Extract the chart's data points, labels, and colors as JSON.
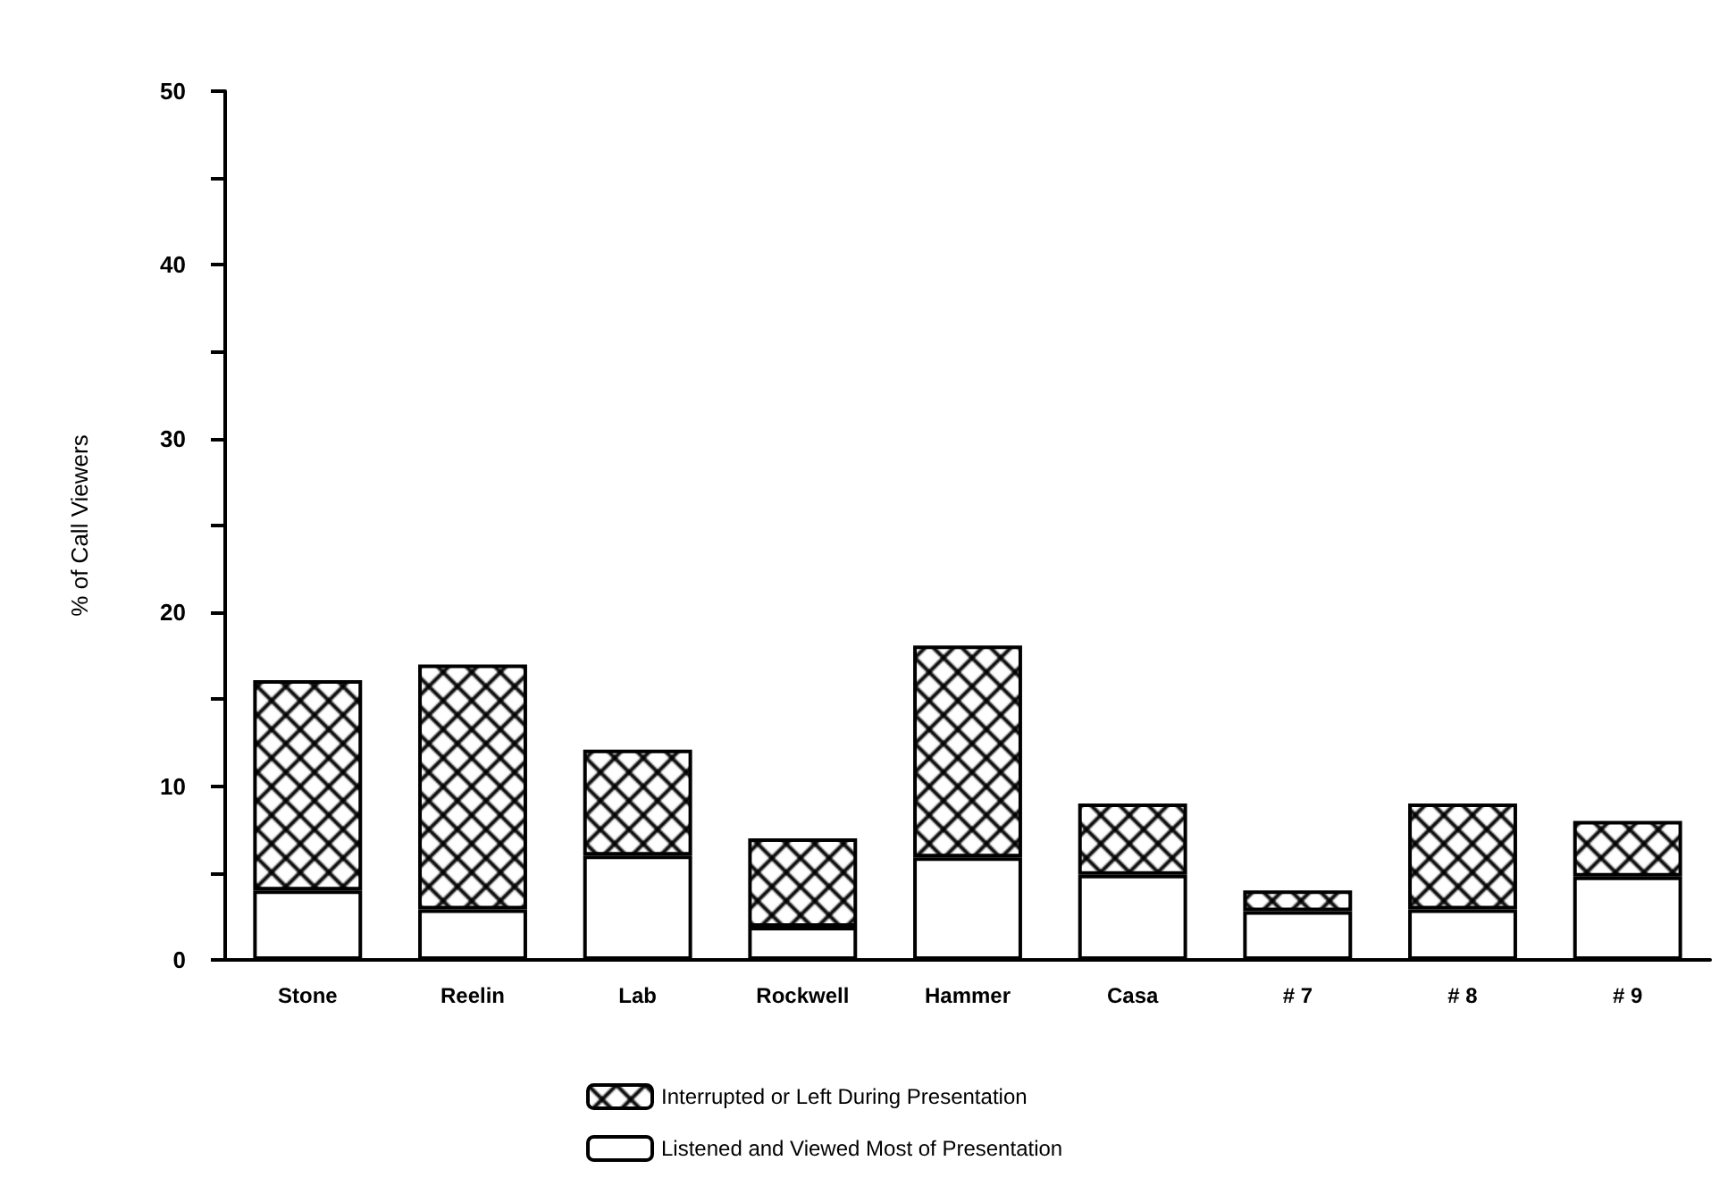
{
  "chart_data": {
    "type": "bar",
    "stacked": true,
    "ylabel": "% of Call Viewers",
    "categories": [
      "Stone",
      "Reelin",
      "Lab",
      "Rockwell",
      "Hammer",
      "Casa",
      "# 7",
      "# 8",
      "# 9"
    ],
    "series": [
      {
        "name": "Listened and Viewed Most of Presentation",
        "color": "#ffffff",
        "values": [
          4.0,
          2.9,
          6.0,
          1.9,
          5.9,
          4.9,
          2.8,
          2.9,
          4.8
        ]
      },
      {
        "name": "Interrupted or Left During Presentation",
        "color": "#000000",
        "values": [
          12.1,
          14.1,
          6.1,
          5.1,
          12.2,
          4.1,
          1.2,
          6.1,
          3.2
        ]
      }
    ],
    "ylim": [
      0,
      50
    ],
    "yticks": [
      0,
      {
        "value": 5,
        "label": null
      },
      10,
      {
        "value": 15,
        "label": null
      },
      20,
      {
        "value": 25,
        "label": null
      },
      30,
      {
        "value": 35,
        "label": null
      },
      40,
      {
        "value": 45,
        "label": null
      },
      50
    ],
    "grid": false,
    "legend": "bottom"
  }
}
